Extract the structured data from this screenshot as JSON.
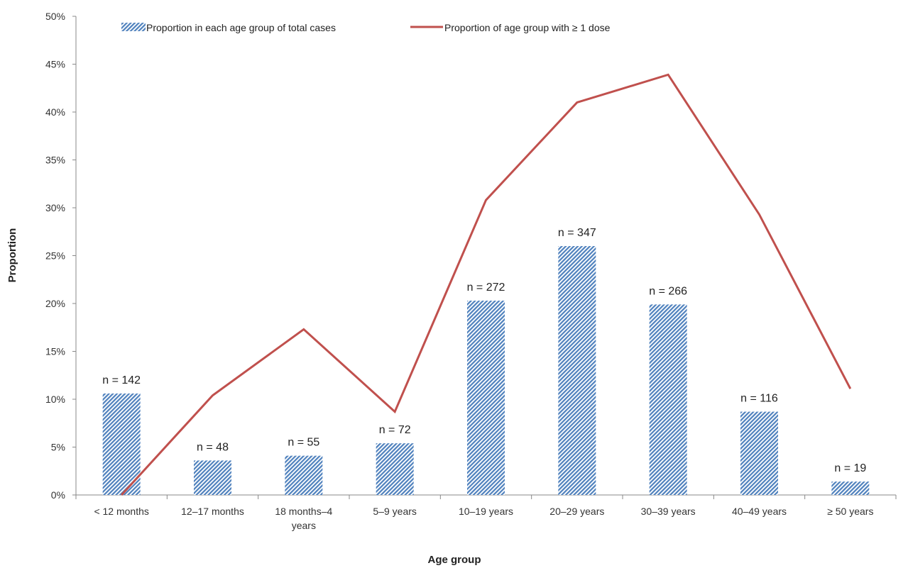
{
  "chart_data": {
    "type": "bar",
    "xlabel": "Age group",
    "ylabel": "Proportion",
    "ylim": [
      0,
      50
    ],
    "yticks": [
      0,
      5,
      10,
      15,
      20,
      25,
      30,
      35,
      40,
      45,
      50
    ],
    "ytick_suffix": "%",
    "categories": [
      [
        "< 12 months"
      ],
      [
        "12–17 months"
      ],
      [
        "18 months–4",
        "years"
      ],
      [
        "5–9 years"
      ],
      [
        "10–19 years"
      ],
      [
        "20–29 years"
      ],
      [
        "30–39 years"
      ],
      [
        "40–49 years"
      ],
      [
        "≥ 50 years"
      ]
    ],
    "legend_position": "top",
    "series": [
      {
        "name": "Proportion in each age group of total cases",
        "type": "bar",
        "pattern": "diagonal-hatch",
        "color": "#4f81bd",
        "values": [
          10.6,
          3.6,
          4.1,
          5.4,
          20.3,
          26.0,
          19.9,
          8.7,
          1.4
        ],
        "labels": [
          "n = 142",
          "n = 48",
          "n = 55",
          "n = 72",
          "n = 272",
          "n = 347",
          "n = 266",
          "n = 116",
          "n = 19"
        ]
      },
      {
        "name": "Proportion of age group with ≥ 1 dose",
        "type": "line",
        "color": "#c0504d",
        "values": [
          0.0,
          10.4,
          17.3,
          8.7,
          30.8,
          41.0,
          43.9,
          29.3,
          11.1
        ]
      }
    ]
  }
}
